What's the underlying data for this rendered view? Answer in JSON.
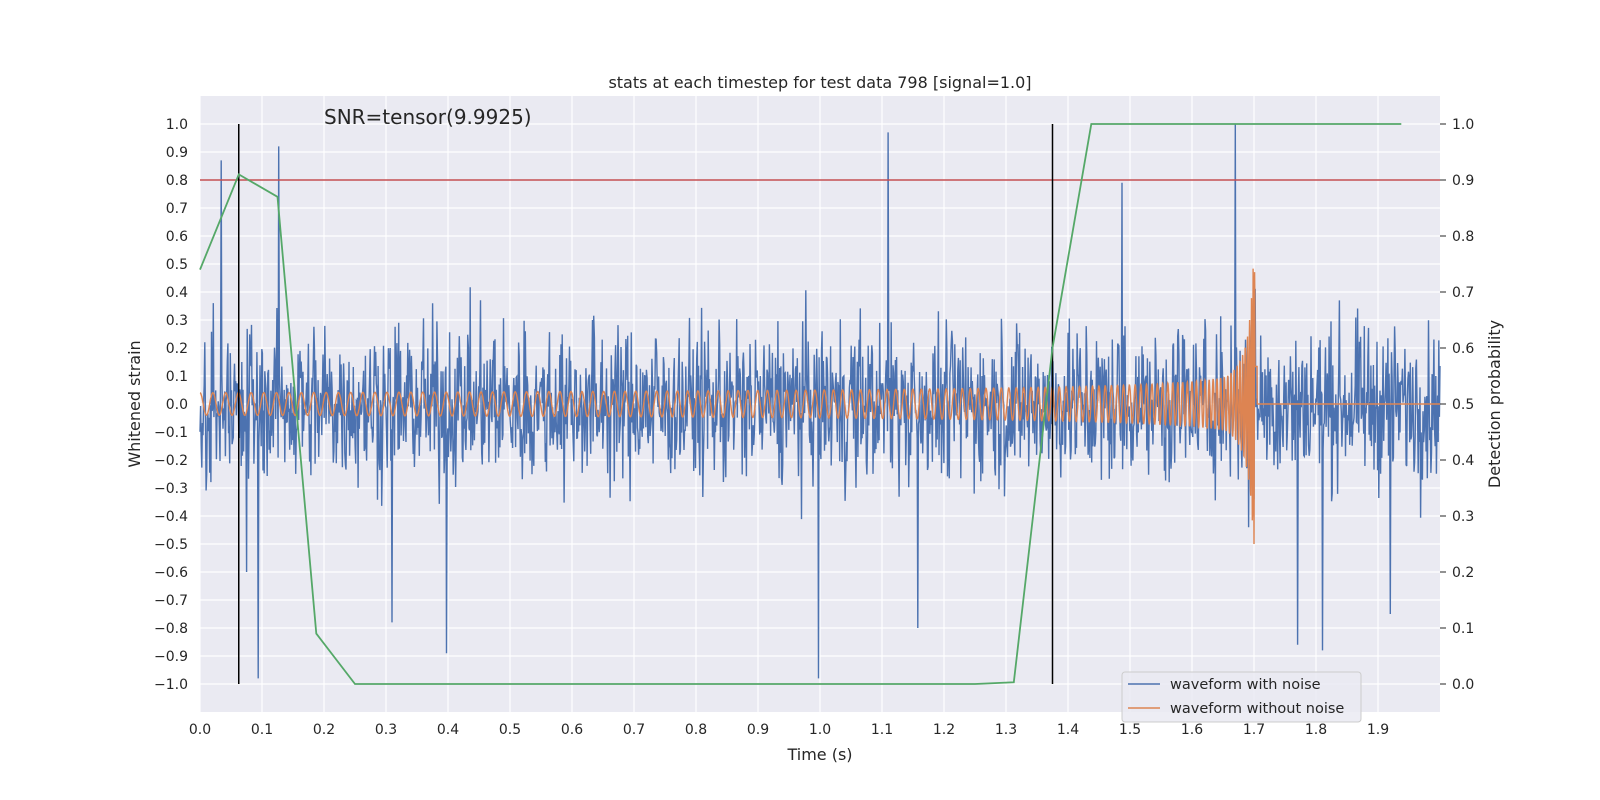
{
  "chart_data": {
    "type": "line",
    "title": "stats at each timestep for test data 798 [signal=1.0]",
    "xlabel": "Time (s)",
    "ylabel_left": "Whitened strain",
    "ylabel_right": "Detection probability",
    "annotation": "SNR=tensor(9.9925)",
    "xlim": [
      0.0,
      2.0
    ],
    "ylim_left": [
      -1.1,
      1.1
    ],
    "ylim_right": [
      -0.05,
      1.05
    ],
    "x_ticks": [
      0.0,
      0.1,
      0.2,
      0.3,
      0.4,
      0.5,
      0.6,
      0.7,
      0.8,
      0.9,
      1.0,
      1.1,
      1.2,
      1.3,
      1.4,
      1.5,
      1.6,
      1.7,
      1.8,
      1.9
    ],
    "x_tick_labels": [
      "0.0",
      "0.1",
      "0.2",
      "0.3",
      "0.4",
      "0.5",
      "0.6",
      "0.7",
      "0.8",
      "0.9",
      "1.0",
      "1.1",
      "1.2",
      "1.3",
      "1.4",
      "1.5",
      "1.6",
      "1.7",
      "1.8",
      "1.9"
    ],
    "y_left_ticks": [
      1.0,
      0.9,
      0.8,
      0.7,
      0.6,
      0.5,
      0.4,
      0.3,
      0.2,
      0.1,
      0.0,
      -0.1,
      -0.2,
      -0.3,
      -0.4,
      -0.5,
      -0.6,
      -0.7,
      -0.8,
      -0.9,
      -1.0
    ],
    "y_left_tick_labels": [
      "1.0",
      "0.9",
      "0.8",
      "0.7",
      "0.6",
      "0.5",
      "0.4",
      "0.3",
      "0.2",
      "0.1",
      "0.0",
      "−0.1",
      "−0.2",
      "−0.3",
      "−0.4",
      "−0.5",
      "−0.6",
      "−0.7",
      "−0.8",
      "−0.9",
      "−1.0"
    ],
    "y_right_ticks": [
      1.0,
      0.9,
      0.8,
      0.7,
      0.6,
      0.5,
      0.4,
      0.3,
      0.2,
      0.1,
      0.0
    ],
    "y_right_tick_labels": [
      "1.0",
      "0.9",
      "0.8",
      "0.7",
      "0.6",
      "0.5",
      "0.4",
      "0.3",
      "0.2",
      "0.1",
      "0.0"
    ],
    "grid": true,
    "legend_position": "lower-right",
    "series": [
      {
        "name": "waveform with noise",
        "axis": "left",
        "color": "#4c72b0",
        "description_only": false,
        "samples": 2048,
        "spikes": [
          [
            0.034,
            0.87
          ],
          [
            0.127,
            0.92
          ],
          [
            1.11,
            0.97
          ],
          [
            1.67,
            1.0
          ],
          [
            0.094,
            -0.98
          ],
          [
            0.075,
            -0.6
          ],
          [
            0.398,
            -0.89
          ],
          [
            0.998,
            -0.98
          ],
          [
            0.31,
            -0.78
          ],
          [
            1.158,
            -0.8
          ],
          [
            1.487,
            0.79
          ],
          [
            1.77,
            -0.86
          ],
          [
            1.81,
            -0.88
          ],
          [
            1.92,
            -0.75
          ]
        ]
      },
      {
        "name": "waveform without noise",
        "axis": "left",
        "color": "#dd8452",
        "chirp": {
          "t_merger": 1.705,
          "f0": 30,
          "amplitude_start": 0.04,
          "amplitude_peak": 0.5
        }
      },
      {
        "name": "",
        "axis": "right",
        "color": "#55a868",
        "x": [
          0.0,
          0.0625,
          0.125,
          0.1875,
          0.25,
          0.3125,
          1.25,
          1.3125,
          1.375,
          1.4375,
          1.5,
          1.9375
        ],
        "y": [
          0.74,
          0.91,
          0.87,
          0.09,
          0.0,
          0.0,
          0.0,
          0.003,
          0.6,
          1.0,
          1.0,
          1.0
        ]
      }
    ],
    "hlines": [
      {
        "axis": "left",
        "y": 0.8,
        "color": "#c44e52"
      }
    ],
    "vlines": [
      {
        "x": 0.0625,
        "color": "#000000",
        "y": [
          -1.0,
          1.0
        ]
      },
      {
        "x": 1.375,
        "color": "#000000",
        "y": [
          -1.0,
          1.0
        ]
      }
    ]
  }
}
